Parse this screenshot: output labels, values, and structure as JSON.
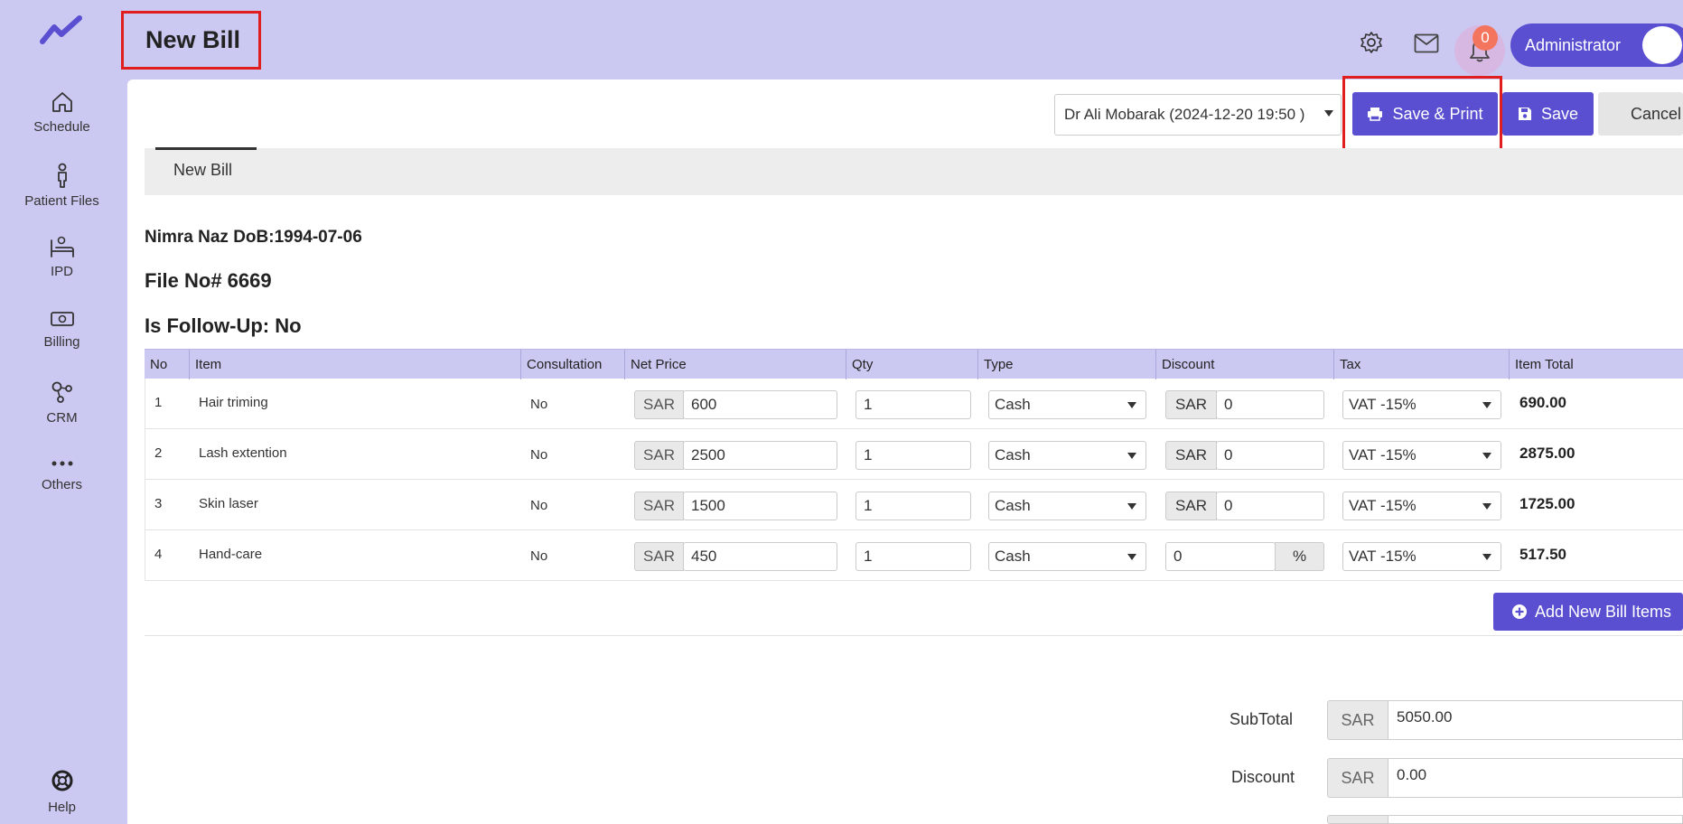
{
  "sidebar": {
    "items": [
      {
        "label": "Schedule",
        "icon": "home-icon"
      },
      {
        "label": "Patient Files",
        "icon": "person-icon"
      },
      {
        "label": "IPD",
        "icon": "bed-icon"
      },
      {
        "label": "Billing",
        "icon": "money-icon"
      },
      {
        "label": "CRM",
        "icon": "network-icon"
      },
      {
        "label": "Others",
        "icon": "more-icon"
      }
    ],
    "help_label": "Help"
  },
  "header": {
    "title": "New Bill",
    "notification_count": "0",
    "user_name": "Administrator"
  },
  "toolbar": {
    "doctor_select_value": "Dr Ali Mobarak (2024-12-20 19:50 )",
    "save_print_label": "Save & Print",
    "save_label": "Save",
    "cancel_label": "Cancel"
  },
  "tabs": [
    {
      "label": "New Bill"
    }
  ],
  "patient": {
    "name_dob": "Nimra Naz DoB:1994-07-06",
    "file_no": "File No# 6669",
    "follow_up": "Is Follow-Up: No"
  },
  "table": {
    "headers": [
      "No",
      "Item",
      "Consultation",
      "Net Price",
      "Qty",
      "Type",
      "Discount",
      "Tax",
      "Item Total"
    ],
    "currency": "SAR",
    "rows": [
      {
        "no": "1",
        "item": "Hair triming",
        "consultation": "No",
        "net_price": "600",
        "qty": "1",
        "type": "Cash",
        "discount_mode": "SAR",
        "discount": "0",
        "tax": "VAT -15%",
        "total": "690.00"
      },
      {
        "no": "2",
        "item": "Lash extention",
        "consultation": "No",
        "net_price": "2500",
        "qty": "1",
        "type": "Cash",
        "discount_mode": "SAR",
        "discount": "0",
        "tax": "VAT -15%",
        "total": "2875.00"
      },
      {
        "no": "3",
        "item": "Skin laser",
        "consultation": "No",
        "net_price": "1500",
        "qty": "1",
        "type": "Cash",
        "discount_mode": "SAR",
        "discount": "0",
        "tax": "VAT -15%",
        "total": "1725.00"
      },
      {
        "no": "4",
        "item": "Hand-care",
        "consultation": "No",
        "net_price": "450",
        "qty": "1",
        "type": "Cash",
        "discount_mode": "%",
        "discount": "0",
        "tax": "VAT -15%",
        "total": "517.50"
      }
    ]
  },
  "add_items_label": "Add New Bill Items",
  "totals": {
    "subtotal_label": "SubTotal",
    "subtotal_value": "5050.00",
    "discount_label": "Discount",
    "discount_value": "0.00",
    "currency": "SAR"
  },
  "colors": {
    "background": "#cbc9f1",
    "accent": "#5a4fd1",
    "highlight": "#e01e1e",
    "badge": "#f4755d"
  }
}
